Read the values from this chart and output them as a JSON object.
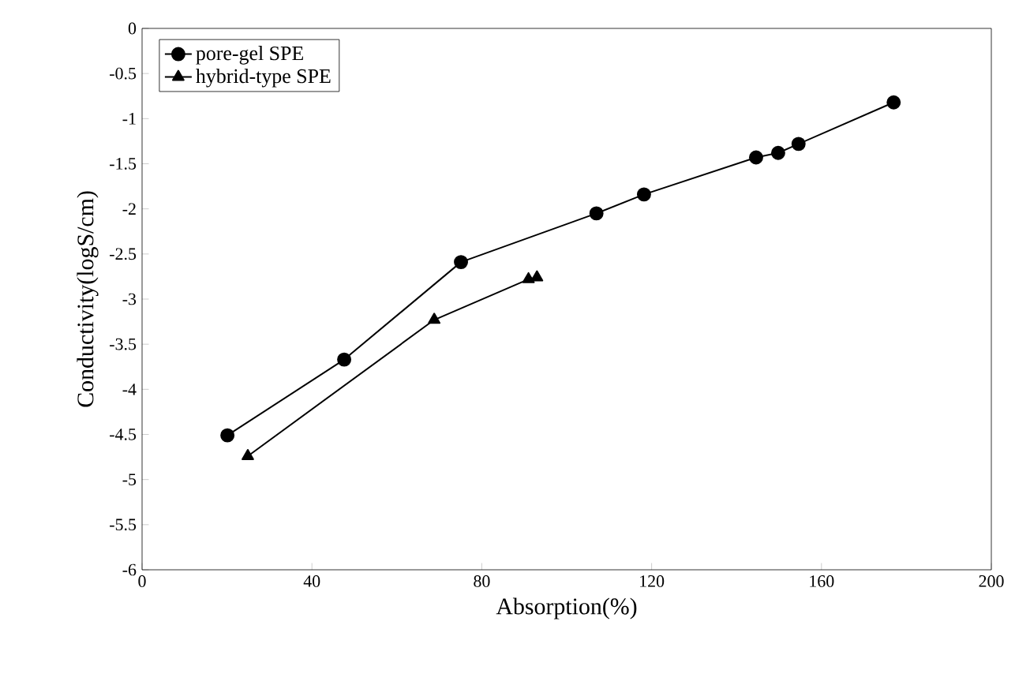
{
  "chart_data": {
    "type": "line",
    "xlabel": "Absorption(%)",
    "ylabel": "Conductivity(logS/cm)",
    "xlim": [
      0,
      200
    ],
    "xticks": [
      0,
      40,
      80,
      120,
      160,
      200
    ],
    "ylim": [
      -6,
      0
    ],
    "yticks": [
      -6,
      -5.5,
      -5,
      -4.5,
      -4,
      -3.5,
      -3,
      -2.5,
      -2,
      -1.5,
      -1,
      -0.5,
      0
    ],
    "grid": false,
    "legend": "top left",
    "line_style": "solid",
    "series": [
      {
        "name": "pore-gel SPE",
        "color": "#000000",
        "marker": "circle",
        "x": [
          20.1,
          47.6,
          75.1,
          107,
          118.2,
          144.6,
          149.8,
          154.6,
          177
        ],
        "values": [
          -4.51,
          -3.67,
          -2.59,
          -2.05,
          -1.84,
          -1.43,
          -1.38,
          -1.28,
          -0.82
        ]
      },
      {
        "name": "hybrid-type SPE",
        "color": "#000000",
        "marker": "triangle",
        "x": [
          24.9,
          68.8,
          91,
          93
        ],
        "values": [
          -4.74,
          -3.23,
          -2.78,
          -2.76
        ]
      }
    ]
  }
}
